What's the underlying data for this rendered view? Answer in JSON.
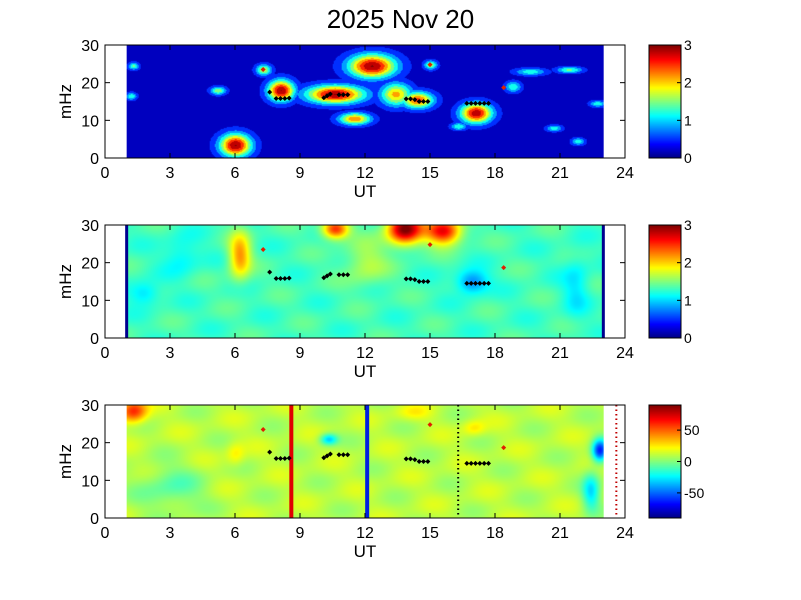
{
  "chart_data": {
    "title": "2025 Nov 20",
    "panels": [
      {
        "type": "heatmap",
        "xlabel": "UT",
        "ylabel": "mHz",
        "xlim": [
          0,
          24
        ],
        "ylim": [
          0,
          30
        ],
        "xticks": [
          "0",
          "3",
          "6",
          "9",
          "12",
          "15",
          "18",
          "21",
          "24"
        ],
        "yticks": [
          "0",
          "10",
          "20",
          "30"
        ],
        "data_span_ut": [
          1,
          23
        ],
        "clim": [
          0,
          3
        ],
        "colorbar_ticks": [
          "0",
          "1",
          "2",
          "3"
        ],
        "colormap": "jet",
        "quantized": true,
        "background_value": 0,
        "blobs": [
          {
            "ut": 6.0,
            "mhz": 3.5,
            "value": 3.2,
            "w": 0.6,
            "h": 2.5
          },
          {
            "ut": 8.1,
            "mhz": 18,
            "value": 3.2,
            "w": 0.5,
            "h": 2.3
          },
          {
            "ut": 10.6,
            "mhz": 17,
            "value": 3.2,
            "w": 1.1,
            "h": 2.0
          },
          {
            "ut": 12.3,
            "mhz": 24.5,
            "value": 3.2,
            "w": 0.9,
            "h": 2.6
          },
          {
            "ut": 11.5,
            "mhz": 10.5,
            "value": 2.4,
            "w": 0.6,
            "h": 1.3
          },
          {
            "ut": 13.4,
            "mhz": 17,
            "value": 2.2,
            "w": 0.6,
            "h": 2.5
          },
          {
            "ut": 14.4,
            "mhz": 15.5,
            "value": 2.6,
            "w": 0.6,
            "h": 1.8
          },
          {
            "ut": 17.1,
            "mhz": 12,
            "value": 3.1,
            "w": 0.6,
            "h": 2.2
          },
          {
            "ut": 7.3,
            "mhz": 23.5,
            "value": 1.8,
            "w": 0.3,
            "h": 1.2
          },
          {
            "ut": 15.0,
            "mhz": 24.8,
            "value": 1.6,
            "w": 0.25,
            "h": 1.0
          },
          {
            "ut": 5.2,
            "mhz": 18,
            "value": 1.6,
            "w": 0.3,
            "h": 0.9
          },
          {
            "ut": 19.6,
            "mhz": 23,
            "value": 1.2,
            "w": 0.6,
            "h": 0.8
          },
          {
            "ut": 21.4,
            "mhz": 23.5,
            "value": 1.4,
            "w": 0.5,
            "h": 0.7
          },
          {
            "ut": 1.3,
            "mhz": 24.5,
            "value": 1.4,
            "w": 0.2,
            "h": 0.8
          },
          {
            "ut": 1.2,
            "mhz": 16.5,
            "value": 1.3,
            "w": 0.2,
            "h": 0.8
          },
          {
            "ut": 16.3,
            "mhz": 8.5,
            "value": 1.3,
            "w": 0.3,
            "h": 0.8
          },
          {
            "ut": 18.8,
            "mhz": 19,
            "value": 1.3,
            "w": 0.3,
            "h": 1.2
          },
          {
            "ut": 22.7,
            "mhz": 14.5,
            "value": 1.2,
            "w": 0.3,
            "h": 0.7
          },
          {
            "ut": 20.7,
            "mhz": 8,
            "value": 1.2,
            "w": 0.3,
            "h": 0.7
          },
          {
            "ut": 21.8,
            "mhz": 4.5,
            "value": 1.2,
            "w": 0.25,
            "h": 0.8
          }
        ]
      },
      {
        "type": "heatmap",
        "xlabel": "UT",
        "ylabel": "mHz",
        "xlim": [
          0,
          24
        ],
        "ylim": [
          0,
          30
        ],
        "xticks": [
          "0",
          "3",
          "6",
          "9",
          "12",
          "15",
          "18",
          "21",
          "24"
        ],
        "yticks": [
          "0",
          "10",
          "20",
          "30"
        ],
        "data_span_ut": [
          1,
          23
        ],
        "clim": [
          0,
          3
        ],
        "colorbar_ticks": [
          "0",
          "1",
          "2",
          "3"
        ],
        "colormap": "jet",
        "quantized": false,
        "background_value": 1.3,
        "blobs": [
          {
            "ut": 6.2,
            "mhz": 22,
            "value": 2.3,
            "w": 0.5,
            "h": 6
          },
          {
            "ut": 13.8,
            "mhz": 29,
            "value": 3.2,
            "w": 0.8,
            "h": 4
          },
          {
            "ut": 15.6,
            "mhz": 28.5,
            "value": 2.9,
            "w": 0.8,
            "h": 3.5
          },
          {
            "ut": 10.6,
            "mhz": 29,
            "value": 2.7,
            "w": 0.6,
            "h": 2.5
          },
          {
            "ut": 16.9,
            "mhz": 15,
            "value": 0.6,
            "w": 0.7,
            "h": 3
          },
          {
            "ut": 1.8,
            "mhz": 12,
            "value": 0.9,
            "w": 0.7,
            "h": 3
          },
          {
            "ut": 3.5,
            "mhz": 22,
            "value": 1.0,
            "w": 0.8,
            "h": 5
          },
          {
            "ut": 21.7,
            "mhz": 14,
            "value": 1.0,
            "w": 0.6,
            "h": 8
          },
          {
            "ut": 12.0,
            "mhz": 20,
            "value": 1.7,
            "w": 1.0,
            "h": 6
          }
        ]
      },
      {
        "type": "heatmap",
        "xlabel": "UT",
        "ylabel": "mHz",
        "xlim": [
          0,
          24
        ],
        "ylim": [
          0,
          30
        ],
        "xticks": [
          "0",
          "3",
          "6",
          "9",
          "12",
          "15",
          "18",
          "21",
          "24"
        ],
        "yticks": [
          "0",
          "10",
          "20",
          "30"
        ],
        "data_span_ut": [
          1,
          23
        ],
        "clim": [
          -90,
          90
        ],
        "colorbar_ticks": [
          "50",
          "0",
          "-50"
        ],
        "colorbar_tick_values": [
          50,
          0,
          -50
        ],
        "colormap": "jet",
        "quantized": false,
        "background_value": 12,
        "blobs": [
          {
            "ut": 1.3,
            "mhz": 28.5,
            "value": 70,
            "w": 0.6,
            "h": 3
          },
          {
            "ut": 6.0,
            "mhz": 17,
            "value": 28,
            "w": 0.4,
            "h": 3
          },
          {
            "ut": 10.3,
            "mhz": 21,
            "value": -35,
            "w": 0.4,
            "h": 1.5
          },
          {
            "ut": 22.8,
            "mhz": 18,
            "value": -70,
            "w": 0.35,
            "h": 3
          },
          {
            "ut": 22.4,
            "mhz": 7,
            "value": -30,
            "w": 0.4,
            "h": 5
          },
          {
            "ut": 17.0,
            "mhz": 24,
            "value": 30,
            "w": 0.5,
            "h": 2
          },
          {
            "ut": 14.2,
            "mhz": 28,
            "value": 25,
            "w": 0.8,
            "h": 2
          },
          {
            "ut": 3.0,
            "mhz": 8,
            "value": -8,
            "w": 1.5,
            "h": 6
          }
        ],
        "vertical_lines": [
          {
            "ut": 8.6,
            "color": "#e00000",
            "style": "solid"
          },
          {
            "ut": 12.1,
            "color": "#0020e0",
            "style": "solid"
          },
          {
            "ut": 16.3,
            "color": "#000000",
            "style": "dotted"
          },
          {
            "ut": 23.6,
            "color": "#c00000",
            "style": "dotted"
          }
        ]
      }
    ],
    "black_markers": [
      [
        7.6,
        17.5
      ],
      [
        7.9,
        15.8
      ],
      [
        8.1,
        15.8
      ],
      [
        8.3,
        15.8
      ],
      [
        8.5,
        15.9
      ],
      [
        10.1,
        16.0
      ],
      [
        10.25,
        16.5
      ],
      [
        10.4,
        17.0
      ],
      [
        10.8,
        16.8
      ],
      [
        11.0,
        16.8
      ],
      [
        11.2,
        16.8
      ],
      [
        13.9,
        15.7
      ],
      [
        14.1,
        15.7
      ],
      [
        14.3,
        15.5
      ],
      [
        14.5,
        15.0
      ],
      [
        14.7,
        15.0
      ],
      [
        14.9,
        15.0
      ],
      [
        16.7,
        14.5
      ],
      [
        16.9,
        14.5
      ],
      [
        17.1,
        14.5
      ],
      [
        17.3,
        14.5
      ],
      [
        17.5,
        14.5
      ],
      [
        17.7,
        14.5
      ]
    ],
    "red_markers": [
      [
        7.3,
        23.5
      ],
      [
        15.0,
        24.8
      ],
      [
        18.4,
        18.7
      ]
    ]
  }
}
